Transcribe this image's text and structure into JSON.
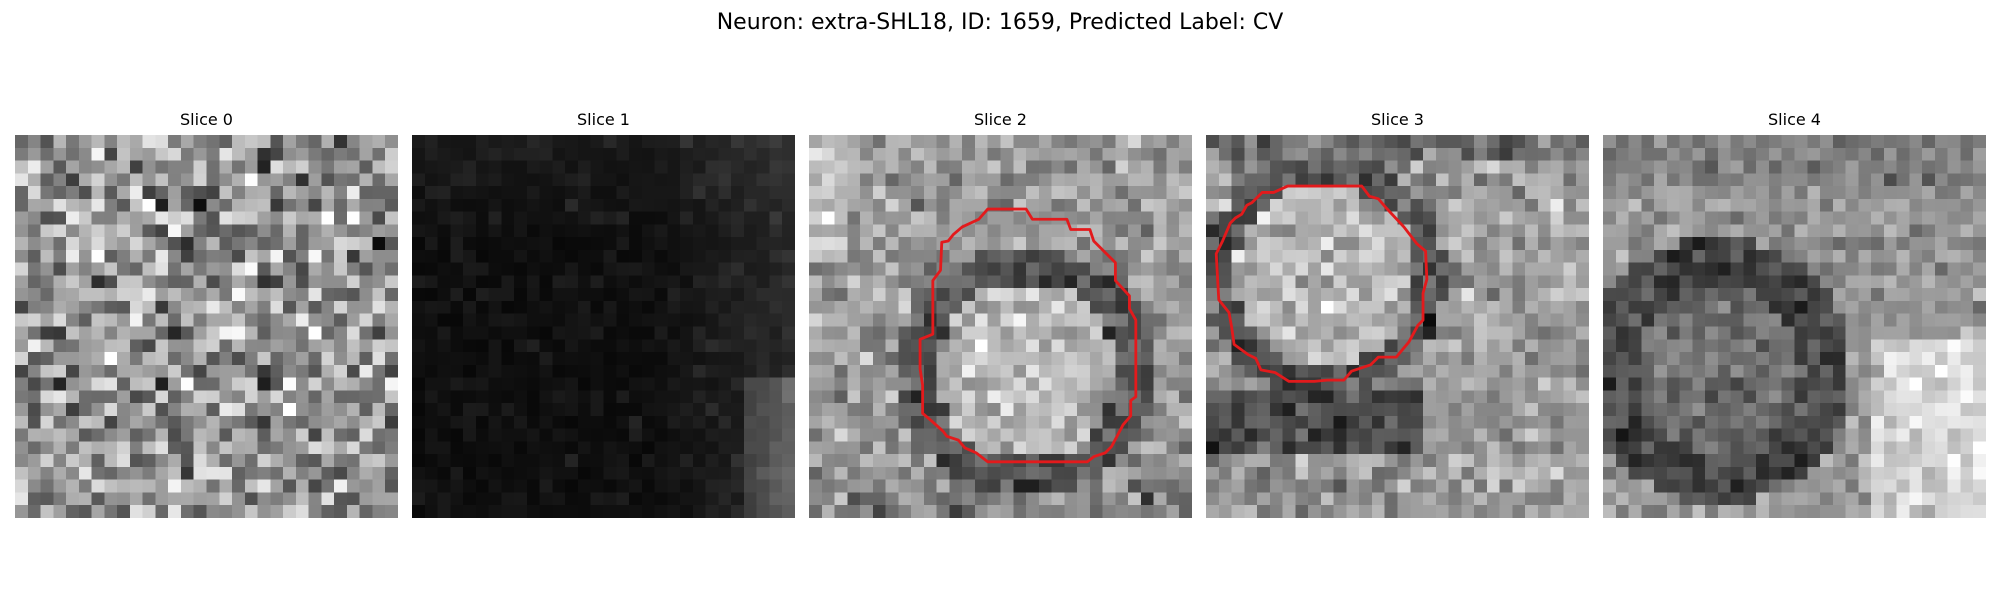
{
  "figure": {
    "title": "Neuron: extra-SHL18, ID: 1659, Predicted Label: CV"
  },
  "panels": [
    {
      "title": "Slice 0",
      "has_contour": false
    },
    {
      "title": "Slice 1",
      "has_contour": false
    },
    {
      "title": "Slice 2",
      "has_contour": true
    },
    {
      "title": "Slice 3",
      "has_contour": true
    },
    {
      "title": "Slice 4",
      "has_contour": false
    }
  ],
  "colors": {
    "contour": "#e31a1c",
    "background": "#ffffff",
    "text": "#000000"
  },
  "image_style": "grayscale pixelated EM slice"
}
